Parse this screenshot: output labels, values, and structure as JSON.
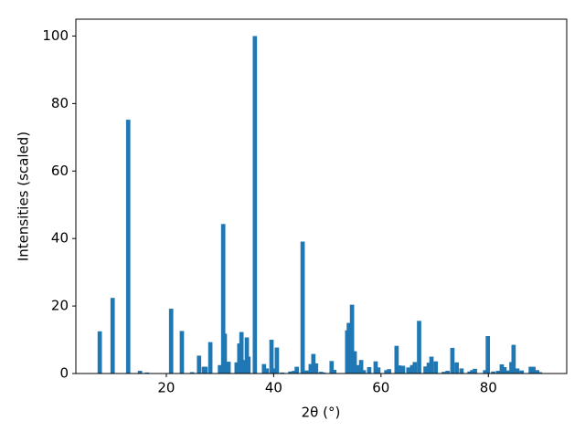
{
  "chart_data": {
    "type": "bar",
    "xlabel": "2θ (°)",
    "ylabel": "Intensities (scaled)",
    "x": [
      7.6,
      10.0,
      12.9,
      15.1,
      16.4,
      20.9,
      22.9,
      24.8,
      26.1,
      27.0,
      27.3,
      28.2,
      30.0,
      30.6,
      30.9,
      31.6,
      33.1,
      33.6,
      34.0,
      34.5,
      35.0,
      35.3,
      36.5,
      38.2,
      38.7,
      39.6,
      40.1,
      40.6,
      41.6,
      43.1,
      43.8,
      44.3,
      45.4,
      46.2,
      46.9,
      47.4,
      47.9,
      48.8,
      49.3,
      50.8,
      51.3,
      53.7,
      54.0,
      54.6,
      55.1,
      55.6,
      56.3,
      56.8,
      57.8,
      59.0,
      59.5,
      61.0,
      61.5,
      62.9,
      63.4,
      64.1,
      65.1,
      65.8,
      66.3,
      67.1,
      68.3,
      68.9,
      69.4,
      70.2,
      71.7,
      72.4,
      73.3,
      74.1,
      75.0,
      76.5,
      77.0,
      77.5,
      79.4,
      79.9,
      80.9,
      81.8,
      82.5,
      83.0,
      83.7,
      84.3,
      84.7,
      85.4,
      86.2,
      87.9,
      88.4,
      89.1,
      89.6
    ],
    "values": [
      12.5,
      22.4,
      75.2,
      0.8,
      0.3,
      19.2,
      12.6,
      0.4,
      5.3,
      2.0,
      2.0,
      9.3,
      2.5,
      44.3,
      11.8,
      3.5,
      3.3,
      8.9,
      12.3,
      4.0,
      10.7,
      5.0,
      100,
      2.8,
      1.5,
      10.0,
      1.5,
      7.7,
      0.3,
      0.6,
      0.8,
      2.0,
      39.1,
      0.9,
      2.8,
      5.8,
      3.0,
      0.5,
      0.3,
      3.7,
      1.1,
      12.8,
      15.0,
      20.4,
      6.6,
      2.5,
      4.0,
      1.0,
      1.9,
      3.6,
      1.8,
      1.0,
      1.3,
      8.2,
      2.4,
      2.3,
      1.8,
      2.5,
      3.4,
      15.6,
      2.1,
      3.2,
      5.0,
      3.6,
      0.5,
      0.8,
      7.6,
      3.3,
      1.5,
      0.6,
      1.0,
      1.4,
      1.0,
      11.1,
      0.6,
      0.8,
      2.7,
      1.9,
      0.9,
      3.4,
      8.5,
      1.5,
      0.9,
      2.0,
      2.0,
      1.0,
      0.4
    ],
    "color": "#1f77b4",
    "xlim": [
      3.15,
      94.6
    ],
    "xticks": [
      20,
      40,
      60,
      80
    ],
    "ylim": [
      0,
      105
    ],
    "yticks": [
      0,
      20,
      40,
      60,
      80,
      100
    ]
  }
}
